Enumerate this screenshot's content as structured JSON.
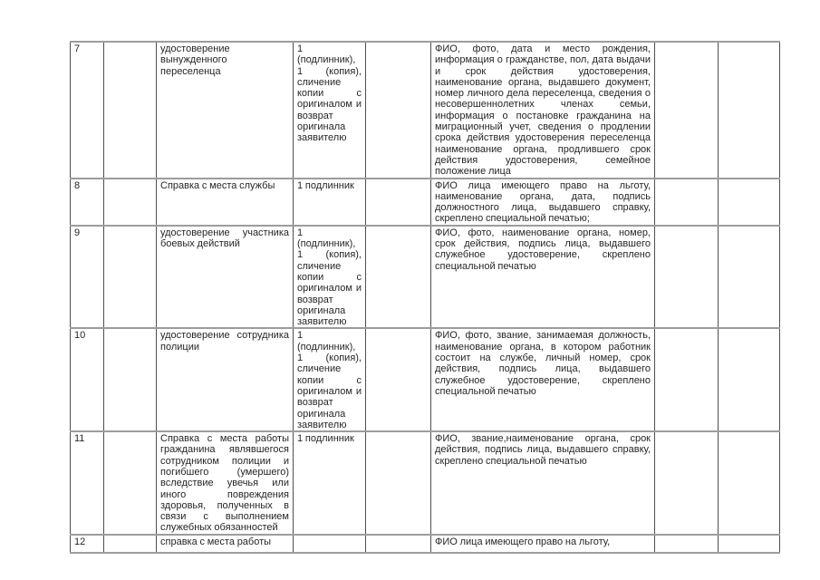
{
  "colors": {
    "page_background": "#ffffff",
    "border_horizontal": "#9c9c9c",
    "border_vertical": "#4f4f4f",
    "text": "#262626"
  },
  "table": {
    "rows": [
      {
        "cells": [
          "7",
          "",
          "удостоверение вынужденного переселенца",
          "1 (подлинник), 1 (копия), сличение копии с оригиналом и возврат оригинала заявителю",
          "",
          "ФИО, фото, дата и место рождения, информация о гражданстве, пол, дата выдачи и срок действия удостоверения, наименование органа, выдавшего документ, номер личного дела переселенца, сведения о несовершеннолетних членах семьи, информация о постановке гражданина на миграционный учет, сведения о продлении срока действия удостоверения переселенца наименование органа, продлившего срок действия удостоверения, семейное положение лица",
          "",
          ""
        ]
      },
      {
        "cells": [
          "8",
          "",
          "Справка с места службы",
          "1 подлинник",
          "",
          "ФИО лица имеющего право на льготу, наименование органа, дата, подпись должностного лица, выдавшего справку, скреплено специальной печатью;",
          "",
          ""
        ]
      },
      {
        "cells": [
          "9",
          "",
          "удостоверение участника боевых действий",
          "1 (подлинник), 1 (копия), сличение копии с оригиналом и возврат оригинала заявителю",
          "",
          "ФИО, фото, наименование органа, номер, срок действия, подпись лица, выдавшего служебное удостоверение, скреплено специальной печатью",
          "",
          ""
        ]
      },
      {
        "cells": [
          "10",
          "",
          "удостоверение сотрудника полиции",
          "1 (подлинник), 1 (копия), сличение копии с оригиналом и возврат оригинала заявителю",
          "",
          "ФИО, фото, звание, занимаемая должность, наименование органа, в котором работник состоит на службе, личный номер, срок действия, подпись лица, выдавшего служебное удостоверение, скреплено специальной печатью",
          "",
          ""
        ]
      },
      {
        "cells": [
          "11",
          "",
          "Справка с места работы гражданина являвшегося сотрудником полиции и погибшего (умершего) вследствие увечья или иного повреждения здоровья, полученных в связи с выполнением служебных обязанностей",
          "1 подлинник",
          "",
          "ФИО, звание,наименование органа, срок действия, подпись лица, выдавшего справку, скреплено специальной печатью",
          "",
          ""
        ]
      },
      {
        "cells": [
          "12",
          "",
          "справка с места работы",
          "",
          "",
          "ФИО лица имеющего право на льготу,",
          "",
          ""
        ]
      }
    ]
  }
}
